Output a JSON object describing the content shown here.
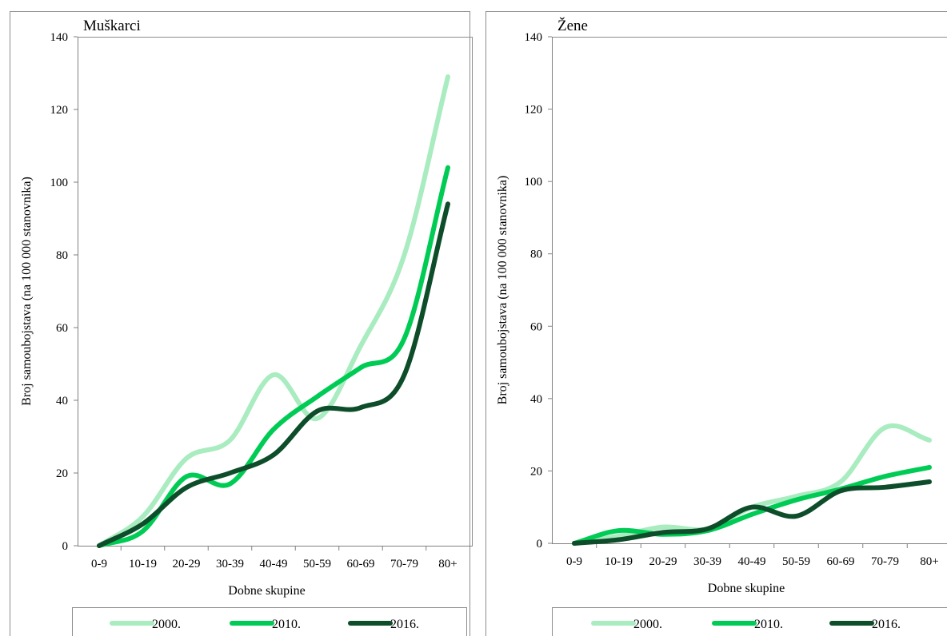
{
  "chart_data": [
    {
      "type": "line",
      "title": "Muškarci",
      "xlabel": "Dobne skupine",
      "ylabel": "Broj samoubojstava (na 100 000 stanovnika)",
      "ylim": [
        0,
        140
      ],
      "yticks": [
        0,
        20,
        40,
        60,
        80,
        100,
        120,
        140
      ],
      "categories": [
        "0-9",
        "10-19",
        "20-29",
        "30-39",
        "40-49",
        "50-59",
        "60-69",
        "70-79",
        "80+"
      ],
      "series": [
        {
          "name": "2000.",
          "color": "#a8ecc0",
          "values": [
            0,
            8,
            24,
            29,
            47,
            35,
            55,
            80,
            129
          ]
        },
        {
          "name": "2010.",
          "color": "#00cc55",
          "values": [
            0,
            4,
            19,
            17,
            32,
            41,
            49,
            57,
            104
          ]
        },
        {
          "name": "2016.",
          "color": "#0d4d2a",
          "values": [
            0,
            6,
            16,
            20,
            25,
            37,
            38,
            47,
            94
          ]
        }
      ],
      "legend_position": "bottom"
    },
    {
      "type": "line",
      "title": "Žene",
      "xlabel": "Dobne skupine",
      "ylabel": "Broj samoubojstava (na 100 000 stanovnika)",
      "ylim": [
        0,
        140
      ],
      "yticks": [
        0,
        20,
        40,
        60,
        80,
        100,
        120,
        140
      ],
      "categories": [
        "0-9",
        "10-19",
        "20-29",
        "30-39",
        "40-49",
        "50-59",
        "60-69",
        "70-79",
        "80+"
      ],
      "series": [
        {
          "name": "2000.",
          "color": "#a8ecc0",
          "values": [
            0,
            2,
            4.5,
            4,
            10,
            13,
            17,
            32,
            28.5
          ]
        },
        {
          "name": "2010.",
          "color": "#00cc55",
          "values": [
            0,
            3.5,
            2.5,
            3.5,
            8,
            12,
            15,
            18.5,
            21
          ]
        },
        {
          "name": "2016.",
          "color": "#0d4d2a",
          "values": [
            0,
            1,
            3,
            4,
            10,
            7.5,
            14.5,
            15.5,
            17
          ]
        }
      ],
      "legend_position": "bottom"
    }
  ]
}
